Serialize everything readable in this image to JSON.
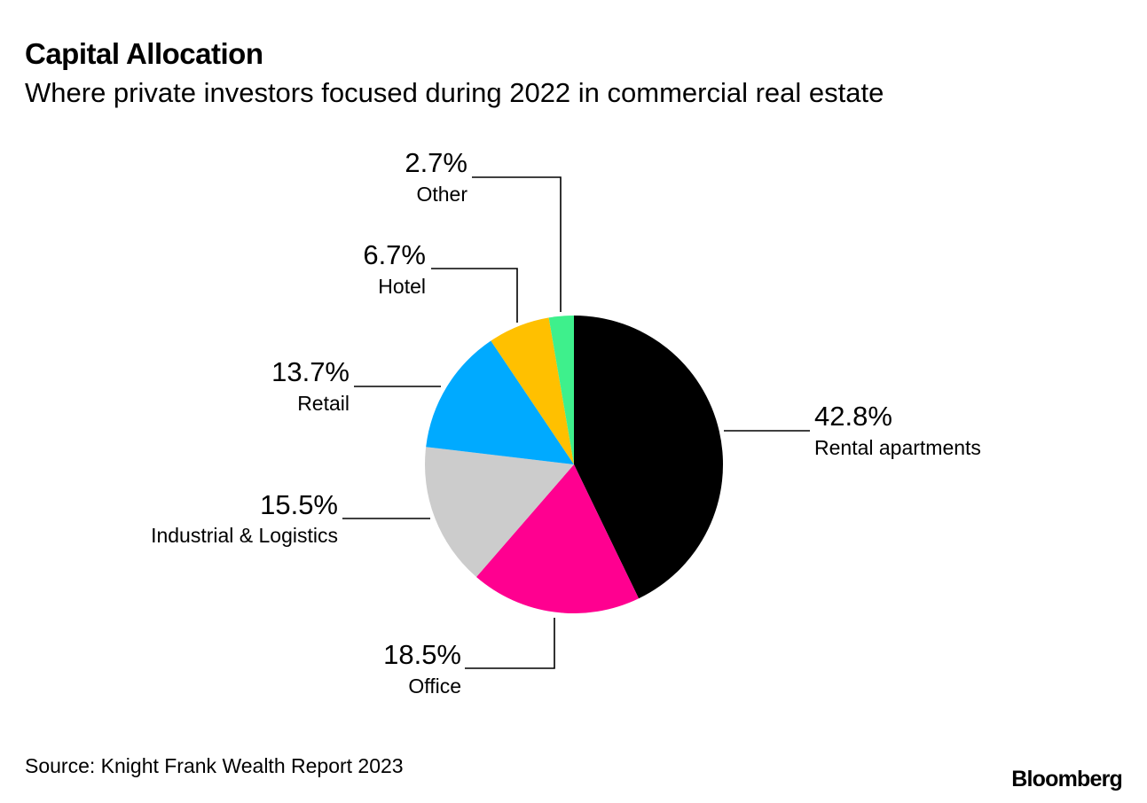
{
  "header": {
    "title": "Capital Allocation",
    "subtitle": "Where private investors focused during 2022 in commercial real estate"
  },
  "footer": {
    "source": "Source: Knight Frank Wealth Report 2023",
    "brand": "Bloomberg"
  },
  "chart_data": {
    "type": "pie",
    "title": "Capital Allocation",
    "subtitle": "Where private investors focused during 2022 in commercial real estate",
    "start": "12 o'clock, clockwise",
    "slices": [
      {
        "name": "Rental apartments",
        "value": 42.8,
        "label": "42.8%",
        "color": "#000000"
      },
      {
        "name": "Office",
        "value": 18.5,
        "label": "18.5%",
        "color": "#ff0090"
      },
      {
        "name": "Industrial & Logistics",
        "value": 15.5,
        "label": "15.5%",
        "color": "#cccccc"
      },
      {
        "name": "Retail",
        "value": 13.7,
        "label": "13.7%",
        "color": "#00aaff"
      },
      {
        "name": "Hotel",
        "value": 6.7,
        "label": "6.7%",
        "color": "#ffc000"
      },
      {
        "name": "Other",
        "value": 2.7,
        "label": "2.7%",
        "color": "#3ef08c"
      }
    ]
  }
}
